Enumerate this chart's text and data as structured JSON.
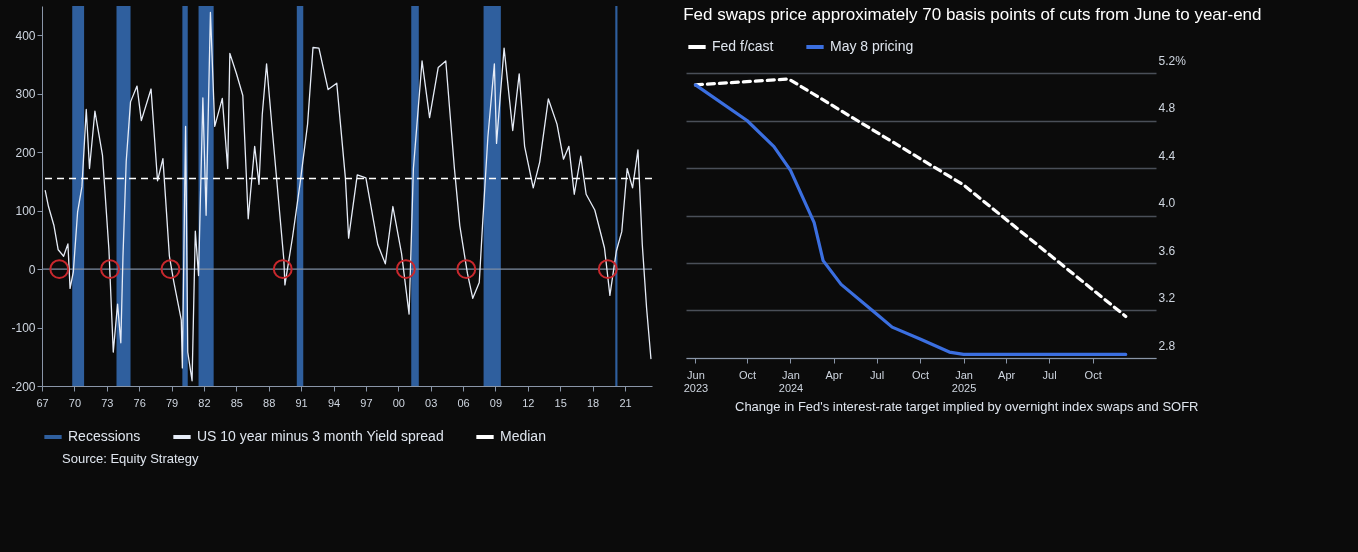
{
  "chart_data": [
    {
      "type": "line",
      "xlim": [
        1967,
        2023.5
      ],
      "xticks": [
        {
          "value": 1967,
          "label": "67"
        },
        {
          "value": 1970,
          "label": "70"
        },
        {
          "value": 1973,
          "label": "73"
        },
        {
          "value": 1976,
          "label": "76"
        },
        {
          "value": 1979,
          "label": "79"
        },
        {
          "value": 1982,
          "label": "82"
        },
        {
          "value": 1985,
          "label": "85"
        },
        {
          "value": 1988,
          "label": "88"
        },
        {
          "value": 1991,
          "label": "91"
        },
        {
          "value": 1994,
          "label": "94"
        },
        {
          "value": 1997,
          "label": "97"
        },
        {
          "value": 2000,
          "label": "00"
        },
        {
          "value": 2003,
          "label": "03"
        },
        {
          "value": 2006,
          "label": "06"
        },
        {
          "value": 2009,
          "label": "09"
        },
        {
          "value": 2012,
          "label": "12"
        },
        {
          "value": 2015,
          "label": "15"
        },
        {
          "value": 2018,
          "label": "18"
        },
        {
          "value": 2021,
          "label": "21"
        }
      ],
      "ylim": [
        -200,
        450
      ],
      "yticks": [
        -200,
        -100,
        0,
        100,
        200,
        300,
        400
      ],
      "legend": "bottom",
      "bands": [
        {
          "axis": "x",
          "from": 1969.8,
          "to": 1970.9,
          "label": "Recessions",
          "color": "#2f5f9e"
        },
        {
          "axis": "x",
          "from": 1973.9,
          "to": 1975.2,
          "color": "#2f5f9e"
        },
        {
          "axis": "x",
          "from": 1980.0,
          "to": 1980.5,
          "color": "#2f5f9e"
        },
        {
          "axis": "x",
          "from": 1981.5,
          "to": 1982.9,
          "color": "#2f5f9e"
        },
        {
          "axis": "x",
          "from": 1990.6,
          "to": 1991.2,
          "color": "#2f5f9e"
        },
        {
          "axis": "x",
          "from": 2001.2,
          "to": 2001.9,
          "color": "#2f5f9e"
        },
        {
          "axis": "x",
          "from": 2007.9,
          "to": 2009.5,
          "color": "#2f5f9e"
        },
        {
          "axis": "x",
          "from": 2020.1,
          "to": 2020.3,
          "color": "#2f5f9e"
        }
      ],
      "ref_lines": [
        {
          "axis": "y",
          "value": 0,
          "color": "#7f8ea3"
        },
        {
          "axis": "y",
          "value": 155,
          "label": "Median",
          "color": "#ffffff",
          "line_style": "dashed"
        }
      ],
      "series": [
        {
          "name": "US 10 year minus 3 month Yield spread",
          "color": "#e6ecf7",
          "x": [
            1967.3,
            1967.6,
            1968.1,
            1968.5,
            1969.0,
            1969.4,
            1969.6,
            1969.9,
            1970.3,
            1970.7,
            1971.1,
            1971.4,
            1971.9,
            1972.6,
            1973.2,
            1973.6,
            1974.0,
            1974.3,
            1974.5,
            1974.8,
            1975.2,
            1975.8,
            1976.2,
            1977.1,
            1977.7,
            1978.2,
            1978.8,
            1979.2,
            1979.9,
            1980.0,
            1980.3,
            1980.5,
            1980.9,
            1981.2,
            1981.5,
            1981.9,
            1982.2,
            1982.6,
            1983.0,
            1983.7,
            1984.2,
            1984.4,
            1985.0,
            1985.6,
            1986.1,
            1986.7,
            1987.1,
            1987.4,
            1987.8,
            1988.3,
            1989.4,
            1989.5,
            1990.2,
            1990.9,
            1991.6,
            1992.1,
            1992.65,
            1993.5,
            1994.3,
            1995.1,
            1995.4,
            1996.2,
            1997.0,
            1998.1,
            1998.8,
            1999.5,
            2000.3,
            2001.0,
            2001.4,
            2002.2,
            2002.9,
            2003.7,
            2004.4,
            2005.2,
            2005.7,
            2006.4,
            2006.9,
            2007.5,
            2007.8,
            2008.3,
            2008.9,
            2009.1,
            2009.8,
            2010.6,
            2011.2,
            2011.7,
            2012.5,
            2013.1,
            2013.9,
            2014.7,
            2015.3,
            2015.8,
            2016.3,
            2016.9,
            2017.4,
            2018.2,
            2019.1,
            2019.6,
            2020.2,
            2020.7,
            2021.2,
            2021.7,
            2022.2,
            2022.6,
            2023.0,
            2023.4
          ],
          "values": [
            134,
            107,
            75,
            33,
            22,
            43,
            -33,
            -5,
            98,
            141,
            273,
            172,
            270,
            195,
            33,
            -142,
            -60,
            -126,
            22,
            184,
            286,
            313,
            254,
            308,
            151,
            189,
            22,
            -21,
            -87,
            -169,
            244,
            -142,
            -191,
            65,
            -11,
            293,
            92,
            439,
            244,
            292,
            172,
            369,
            335,
            297,
            86,
            210,
            145,
            264,
            351,
            244,
            16,
            -27,
            54,
            146,
            248,
            379,
            378,
            307,
            318,
            156,
            53,
            161,
            156,
            42,
            9,
            107,
            27,
            -77,
            172,
            356,
            259,
            345,
            356,
            172,
            74,
            -7,
            -50,
            -23,
            74,
            226,
            351,
            215,
            378,
            237,
            334,
            210,
            139,
            183,
            291,
            248,
            188,
            210,
            128,
            193,
            128,
            101,
            36,
            -45,
            31,
            64,
            172,
            139,
            204,
            42,
            -67,
            -153
          ]
        },
        {
          "type": "scatter",
          "marker": "circle",
          "color": "#c8282d",
          "x": [
            1968.6,
            1973.3,
            1978.9,
            1989.3,
            2000.7,
            2006.3,
            2019.4
          ],
          "values": [
            0,
            0,
            0,
            0,
            0,
            0,
            0
          ]
        }
      ],
      "annotations": [
        "Source: Equity Strategy"
      ]
    },
    {
      "type": "line",
      "title": "Fed swaps price approximately 70 basis points of cuts from June to year-end",
      "xlim": [
        "2023-05-25",
        "2026-02-12"
      ],
      "xticks": [
        {
          "value": "2023-06-14",
          "label": "Jun\n2023"
        },
        {
          "value": "2023-10-01",
          "label": "Oct"
        },
        {
          "value": "2024-01-01",
          "label": "Jan\n2024"
        },
        {
          "value": "2024-04-01",
          "label": "Apr"
        },
        {
          "value": "2024-07-01",
          "label": "Jul"
        },
        {
          "value": "2024-10-01",
          "label": "Oct"
        },
        {
          "value": "2025-01-01",
          "label": "Jan\n2025"
        },
        {
          "value": "2025-04-01",
          "label": "Apr"
        },
        {
          "value": "2025-07-01",
          "label": "Jul"
        },
        {
          "value": "2025-10-01",
          "label": "Oct"
        }
      ],
      "y2lim": [
        2.8,
        5.2
      ],
      "y2ticks": [
        {
          "value": 5.2,
          "label": "5.2%"
        },
        4.8,
        4.4,
        {
          "value": 4,
          "label": "4.0"
        },
        3.6,
        3.2,
        2.8
      ],
      "grid": "y",
      "legend": "top left",
      "series": [
        {
          "name": "Fed f/cast",
          "color": "#ffffff",
          "line_style": "dashed",
          "axis": "y2",
          "x": [
            "2023-06-14",
            "2023-12-28",
            "2024-12-31",
            "2025-12-10"
          ],
          "values": [
            5.1,
            5.15,
            4.26,
            3.15
          ]
        },
        {
          "name": "May 8 pricing",
          "color": "#3b6fe0",
          "axis": "y2",
          "x": [
            "2023-06-14",
            "2023-10-01",
            "2023-11-27",
            "2024-01-01",
            "2024-02-20",
            "2024-03-10",
            "2024-04-17",
            "2024-07-01",
            "2024-08-03",
            "2024-10-01",
            "2024-12-02",
            "2025-01-01",
            "2025-12-10"
          ],
          "values": [
            5.1,
            4.8,
            4.58,
            4.38,
            3.94,
            3.62,
            3.42,
            3.17,
            3.06,
            2.96,
            2.85,
            2.83,
            2.83
          ]
        }
      ],
      "annotations": [
        "Change in Fed's interest-rate target implied by overnight index swaps and SOFR"
      ]
    }
  ]
}
